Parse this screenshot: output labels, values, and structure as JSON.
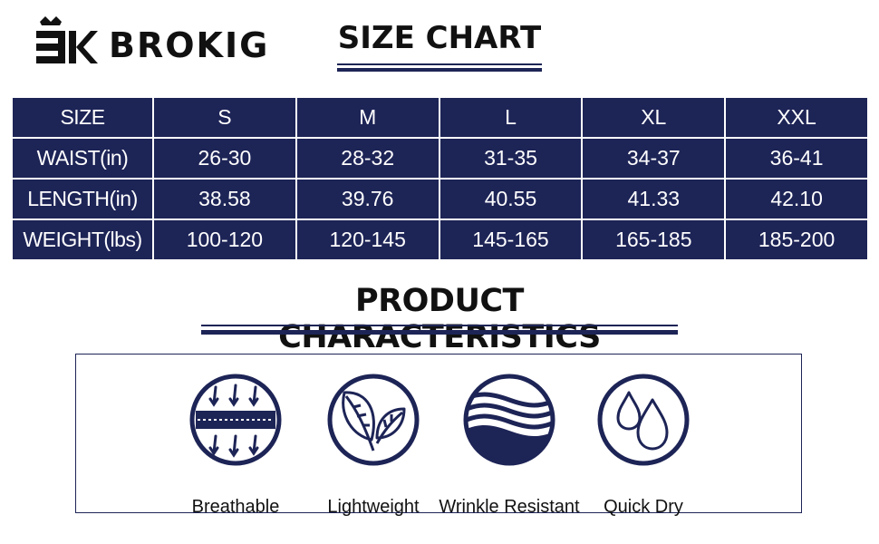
{
  "brand": {
    "name": "BROKIG",
    "mark": "BK"
  },
  "size_chart": {
    "title": "SIZE CHART",
    "header": [
      "SIZE",
      "S",
      "M",
      "L",
      "XL",
      "XXL"
    ],
    "rows": [
      [
        "WAIST(in)",
        "26-30",
        "28-32",
        "31-35",
        "34-37",
        "36-41"
      ],
      [
        "LENGTH(in)",
        "38.58",
        "39.76",
        "40.55",
        "41.33",
        "42.10"
      ],
      [
        "WEIGHT(lbs)",
        "100-120",
        "120-145",
        "145-165",
        "165-185",
        "185-200"
      ]
    ]
  },
  "characteristics": {
    "title": "PRODUCT CHARACTERISTICS",
    "items": [
      {
        "label": "Breathable",
        "icon": "breathable-icon"
      },
      {
        "label": "Lightweight",
        "icon": "leaves-icon"
      },
      {
        "label": "Wrinkle Resistant",
        "icon": "waves-icon"
      },
      {
        "label": "Quick Dry",
        "icon": "droplets-icon"
      }
    ]
  },
  "colors": {
    "navy": "#1d2456",
    "text": "#111111",
    "background": "#ffffff"
  }
}
